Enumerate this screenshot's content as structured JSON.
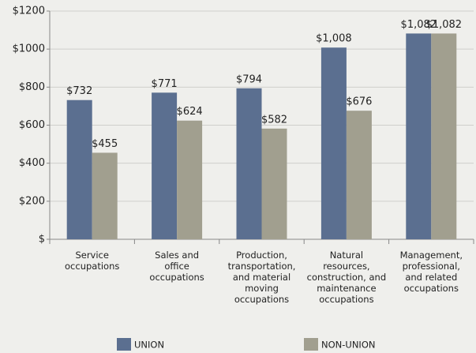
{
  "chart_data": {
    "type": "bar",
    "categories": [
      "Service\noccupations",
      "Sales and\noffice\noccupations",
      "Production,\ntransportation,\nand material\nmoving\noccupations",
      "Natural\nresources,\nconstruction, and\nmaintenance\noccupations",
      "Management,\nprofessional,\nand related\noccupations"
    ],
    "series": [
      {
        "name": "UNION",
        "color": "#5b6f90",
        "values": [
          732,
          771,
          794,
          1008,
          1082
        ],
        "value_labels": [
          "$732",
          "$771",
          "$794",
          "$1,008",
          "$1,082"
        ]
      },
      {
        "name": "NON-UNION",
        "color": "#a19f8f",
        "values": [
          455,
          624,
          582,
          676,
          1082
        ],
        "value_labels": [
          "$455",
          "$624",
          "$582",
          "$676",
          "$1,082"
        ]
      }
    ],
    "ylim": [
      0,
      1200
    ],
    "yticks": [
      {
        "value": 0,
        "label": "$"
      },
      {
        "value": 200,
        "label": "$200"
      },
      {
        "value": 400,
        "label": "$400"
      },
      {
        "value": 600,
        "label": "$600"
      },
      {
        "value": 800,
        "label": "$800"
      },
      {
        "value": 1000,
        "label": "$1000"
      },
      {
        "value": 1200,
        "label": "$1200"
      }
    ],
    "grid": true,
    "legend": "bottom"
  }
}
